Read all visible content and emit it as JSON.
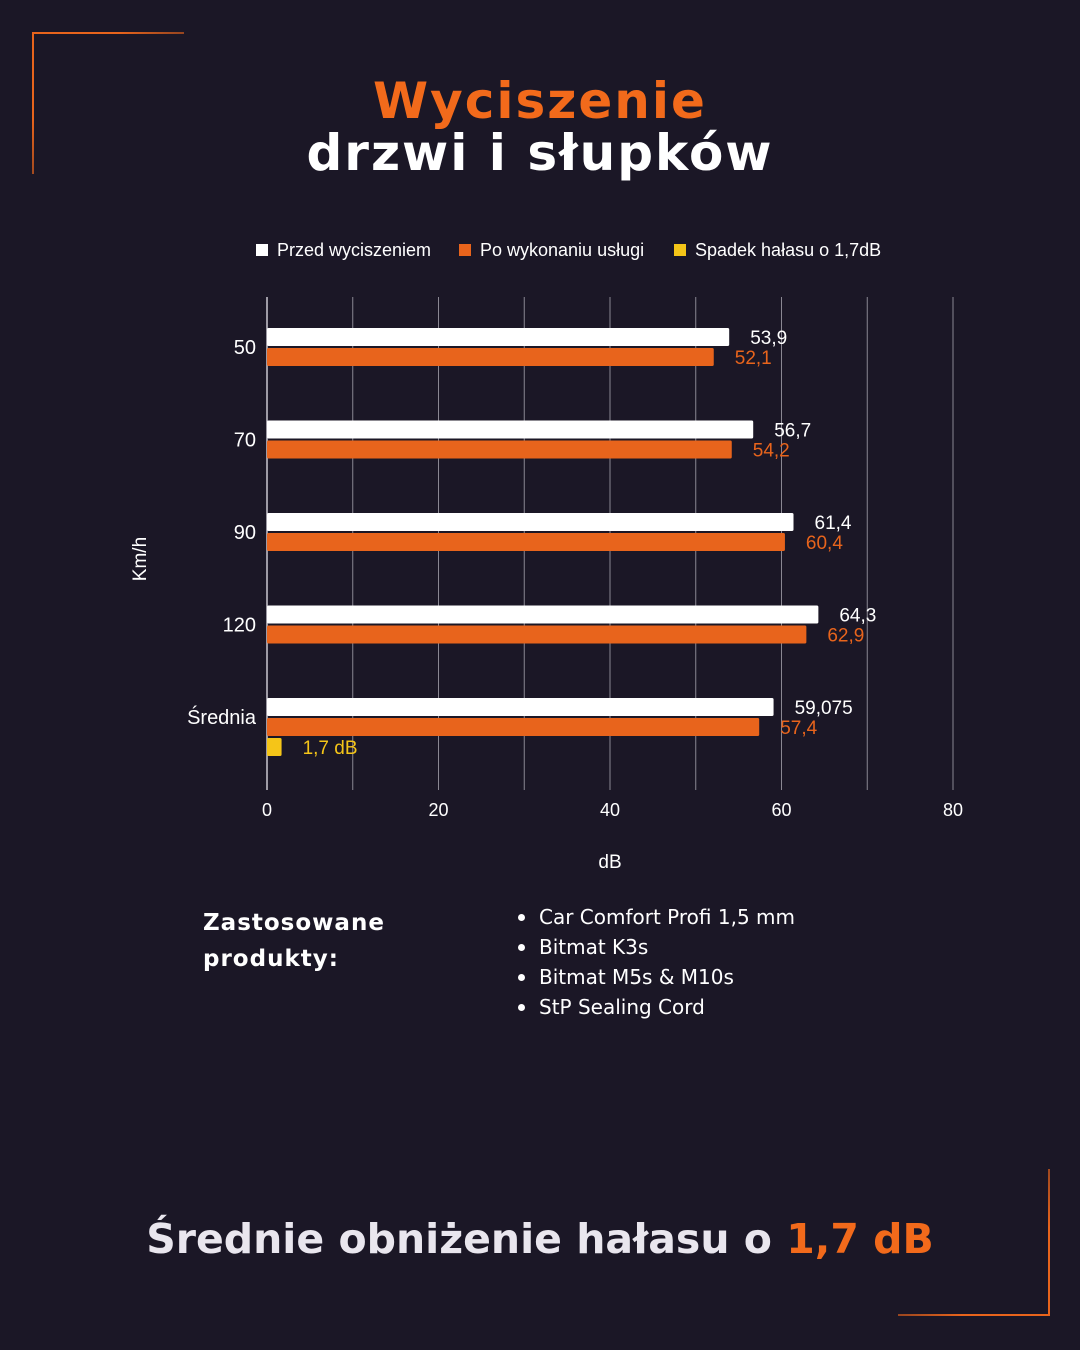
{
  "title": {
    "line1": "Wyciszenie",
    "line2": "drzwi i słupków"
  },
  "colors": {
    "background": "#1b1726",
    "accent": "#e8641c",
    "before": "#ffffff",
    "after": "#e8641c",
    "reduction": "#f5c518",
    "grid": "#8a8792"
  },
  "chart_data": {
    "type": "bar",
    "orientation": "horizontal",
    "legend_position": "top",
    "grid": true,
    "xlabel": "dB",
    "ylabel": "Km/h",
    "xlim": [
      0,
      80
    ],
    "x_ticks": [
      "0",
      "20",
      "40",
      "60",
      "80"
    ],
    "categories": [
      "50",
      "70",
      "90",
      "120",
      "Średnia"
    ],
    "series": [
      {
        "name": "Przed wyciszeniem",
        "values": [
          53.9,
          56.7,
          61.4,
          64.3,
          59.075
        ],
        "labels": [
          "53,9",
          "56,7",
          "61,4",
          "64,3",
          "59,075"
        ]
      },
      {
        "name": "Po wykonaniu usługi",
        "values": [
          52.1,
          54.2,
          60.4,
          62.9,
          57.4
        ],
        "labels": [
          "52,1",
          "54,2",
          "60,4",
          "62,9",
          "57,4"
        ]
      },
      {
        "name": "Spadek hałasu o 1,7dB",
        "values": [
          null,
          null,
          null,
          null,
          1.7
        ],
        "labels": [
          "",
          "",
          "",
          "",
          "1,7 dB"
        ]
      }
    ]
  },
  "products": {
    "heading_line1": "Zastosowane",
    "heading_line2": "produkty:",
    "items": [
      "Car Comfort Profi 1,5 mm",
      "Bitmat K3s",
      "Bitmat M5s & M10s",
      "StP Sealing Cord"
    ]
  },
  "summary": {
    "text": "Średnie obniżenie hałasu o ",
    "highlight": "1,7 dB"
  }
}
